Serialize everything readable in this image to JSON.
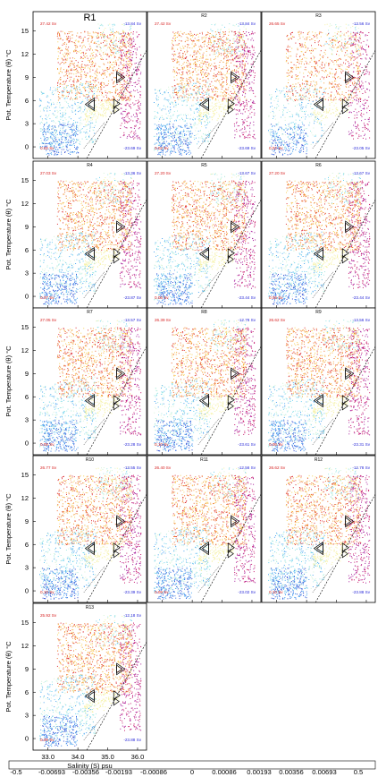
{
  "figure": {
    "ylabel": "Pot. Temperature (θ) °C",
    "xlabel": "Salinity (S) psu",
    "x_ticks": [
      "33.0",
      "34.0",
      "35.0",
      "36.0"
    ],
    "y_ticks": [
      "0",
      "3",
      "6",
      "9",
      "12",
      "15"
    ]
  },
  "colorbar": {
    "labels": [
      "-0.5",
      "-0.00693",
      "-0.00356",
      "-0.00193",
      "-0.00086",
      "0",
      "0.00086",
      "0.00193",
      "0.00356",
      "0.00693",
      "0.5"
    ],
    "colors": [
      "#1c1c9c",
      "#2f48d0",
      "#3b78e6",
      "#4aa6f0",
      "#6cd0ee",
      "#9ee8e2",
      "#d6f4d8",
      "#f6f2a8",
      "#f8d25a",
      "#f4a43a",
      "#ec6a2e",
      "#dc2e36",
      "#c8186c",
      "#a61a9a"
    ]
  },
  "chart_data": [
    {
      "type": "scatter",
      "title": "R1",
      "xlabel": "Salinity (S) psu",
      "ylabel": "Pot. Temperature (θ) °C",
      "xlim": [
        32.5,
        36.3
      ],
      "ylim": [
        -1.5,
        17.5
      ],
      "red_value": "27.42 Sv",
      "red_value_low": "0.02 Sv",
      "blue_value": "-13.84 Sv",
      "blue_value_low": "-23.69 Sv"
    },
    {
      "type": "scatter",
      "title": "R2",
      "xlabel": "Salinity (S) psu",
      "ylabel": "Pot. Temperature (θ) °C",
      "xlim": [
        32.5,
        36.3
      ],
      "ylim": [
        -1.5,
        17.5
      ],
      "red_value": "27.42 Sv",
      "red_value_low": "0.02 Sv",
      "blue_value": "-13.84 Sv",
      "blue_value_low": "-23.69 Sv"
    },
    {
      "type": "scatter",
      "title": "R3",
      "xlabel": "Salinity (S) psu",
      "ylabel": "Pot. Temperature (θ) °C",
      "xlim": [
        32.5,
        36.3
      ],
      "ylim": [
        -1.5,
        17.5
      ],
      "red_value": "26.65 Sv",
      "red_value_low": "0.02 Sv",
      "blue_value": "-13.56 Sv",
      "blue_value_low": "-23.05 Sv"
    },
    {
      "type": "scatter",
      "title": "R4",
      "xlabel": "Salinity (S) psu",
      "ylabel": "Pot. Temperature (θ) °C",
      "xlim": [
        32.5,
        36.3
      ],
      "ylim": [
        -1.5,
        17.5
      ],
      "red_value": "27.03 Sv",
      "red_value_low": "0.07 Sv",
      "blue_value": "-13.36 Sv",
      "blue_value_low": "-23.87 Sv"
    },
    {
      "type": "scatter",
      "title": "R5",
      "xlabel": "Salinity (S) psu",
      "ylabel": "Pot. Temperature (θ) °C",
      "xlim": [
        32.5,
        36.3
      ],
      "ylim": [
        -1.5,
        17.5
      ],
      "red_value": "27.20 Sv",
      "red_value_low": "0.06 Sv",
      "blue_value": "-13.67 Sv",
      "blue_value_low": "-23.44 Sv"
    },
    {
      "type": "scatter",
      "title": "R6",
      "xlabel": "Salinity (S) psu",
      "ylabel": "Pot. Temperature (θ) °C",
      "xlim": [
        32.5,
        36.3
      ],
      "ylim": [
        -1.5,
        17.5
      ],
      "red_value": "27.20 Sv",
      "red_value_low": "0.06 Sv",
      "blue_value": "-13.67 Sv",
      "blue_value_low": "-23.44 Sv"
    },
    {
      "type": "scatter",
      "title": "R7",
      "xlabel": "Salinity (S) psu",
      "ylabel": "Pot. Temperature (θ) °C",
      "xlim": [
        32.5,
        36.3
      ],
      "ylim": [
        -1.5,
        17.5
      ],
      "red_value": "27.05 Sv",
      "red_value_low": "0.08 Sv",
      "blue_value": "-13.57 Sv",
      "blue_value_low": "-23.28 Sv"
    },
    {
      "type": "scatter",
      "title": "R8",
      "xlabel": "Salinity (S) psu",
      "ylabel": "Pot. Temperature (θ) °C",
      "xlim": [
        32.5,
        36.3
      ],
      "ylim": [
        -1.5,
        17.5
      ],
      "red_value": "26.39 Sv",
      "red_value_low": "0.10 Sv",
      "blue_value": "-12.78 Sv",
      "blue_value_low": "-23.61 Sv"
    },
    {
      "type": "scatter",
      "title": "R9",
      "xlabel": "Salinity (S) psu",
      "ylabel": "Pot. Temperature (θ) °C",
      "xlim": [
        32.5,
        36.3
      ],
      "ylim": [
        -1.5,
        17.5
      ],
      "red_value": "26.62 Sv",
      "red_value_low": "0.06 Sv",
      "blue_value": "-13.56 Sv",
      "blue_value_low": "-23.31 Sv"
    },
    {
      "type": "scatter",
      "title": "R10",
      "xlabel": "Salinity (S) psu",
      "ylabel": "Pot. Temperature (θ) °C",
      "xlim": [
        32.5,
        36.3
      ],
      "ylim": [
        -1.5,
        17.5
      ],
      "red_value": "26.77 Sv",
      "red_value_low": "0.10 Sv",
      "blue_value": "-13.55 Sv",
      "blue_value_low": "-23.39 Sv"
    },
    {
      "type": "scatter",
      "title": "R11",
      "xlabel": "Salinity (S) psu",
      "ylabel": "Pot. Temperature (θ) °C",
      "xlim": [
        32.5,
        36.3
      ],
      "ylim": [
        -1.5,
        17.5
      ],
      "red_value": "26.40 Sv",
      "red_value_low": "0.09 Sv",
      "blue_value": "-12.56 Sv",
      "blue_value_low": "-23.02 Sv"
    },
    {
      "type": "scatter",
      "title": "R12",
      "xlabel": "Salinity (S) psu",
      "ylabel": "Pot. Temperature (θ) °C",
      "xlim": [
        32.5,
        36.3
      ],
      "ylim": [
        -1.5,
        17.5
      ],
      "red_value": "26.62 Sv",
      "red_value_low": "0.10 Sv",
      "blue_value": "-12.78 Sv",
      "blue_value_low": "-23.88 Sv"
    },
    {
      "type": "scatter",
      "title": "R13",
      "xlabel": "Salinity (S) psu",
      "ylabel": "Pot. Temperature (θ) °C",
      "xlim": [
        32.5,
        36.3
      ],
      "ylim": [
        -1.5,
        17.5
      ],
      "red_value": "25.92 Sv",
      "red_value_low": "0.09 Sv",
      "blue_value": "-12.18 Sv",
      "blue_value_low": "-23.88 Sv"
    }
  ]
}
